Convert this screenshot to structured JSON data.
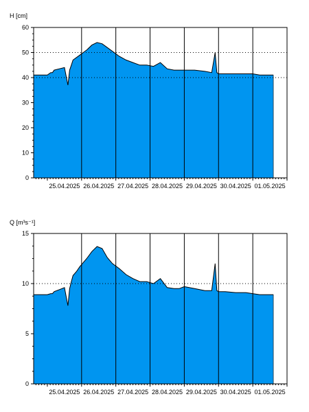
{
  "chart_data": [
    {
      "type": "area",
      "ylabel": "H [cm]",
      "ylim": [
        0,
        60
      ],
      "yticks": [
        0,
        10,
        20,
        30,
        40,
        50,
        60
      ],
      "ygrid_dotted": [
        40,
        50
      ],
      "xlim": [
        -0.4,
        7.0
      ],
      "x_day_labels": [
        "25.04.2025",
        "26.04.2025",
        "27.04.2025",
        "28.04.2025",
        "29.04.2025",
        "30.04.2025",
        "01.05.2025"
      ],
      "x_day_lines": [
        1,
        2,
        3,
        4,
        5,
        6
      ],
      "grid": "vertical day lines",
      "fill_color": "#0095f0",
      "line_color": "#000000",
      "series": [
        {
          "x": [
            -0.4,
            0.0,
            0.1,
            0.15,
            0.2,
            0.35,
            0.5,
            0.6,
            0.65,
            0.7,
            0.75,
            0.85,
            0.95,
            1.0,
            1.05,
            1.15,
            1.3,
            1.45,
            1.6,
            1.75,
            1.9,
            2.1,
            2.3,
            2.5,
            2.7,
            2.9,
            3.1,
            3.3,
            3.5,
            3.7,
            3.85,
            4.0,
            4.3,
            4.6,
            4.8,
            4.9,
            4.95,
            5.0,
            5.1,
            5.2,
            5.5,
            5.8,
            6.0,
            6.2,
            6.4,
            6.6
          ],
          "y": [
            41,
            41,
            42,
            42,
            43,
            43.5,
            44,
            37,
            43,
            45,
            47,
            48,
            49,
            49.5,
            50,
            51,
            53,
            54,
            53.5,
            52,
            50.5,
            48.5,
            47,
            46,
            45,
            45,
            44.5,
            46,
            43.5,
            43,
            43,
            43,
            43,
            42.5,
            42,
            50,
            42,
            41.5,
            41.5,
            41.5,
            41.5,
            41.5,
            41.5,
            41,
            41,
            41
          ]
        }
      ]
    },
    {
      "type": "area",
      "ylabel": "Q [m³s⁻¹]",
      "ylim": [
        0,
        15
      ],
      "yticks": [
        0,
        5,
        10,
        15
      ],
      "ygrid_dotted": [
        10
      ],
      "xlim": [
        -0.4,
        7.0
      ],
      "x_day_labels": [
        "25.04.2025",
        "26.04.2025",
        "27.04.2025",
        "28.04.2025",
        "29.04.2025",
        "30.04.2025",
        "01.05.2025"
      ],
      "x_day_lines": [
        1,
        2,
        3,
        4,
        5,
        6
      ],
      "grid": "vertical day lines",
      "fill_color": "#0095f0",
      "line_color": "#000000",
      "series": [
        {
          "x": [
            -0.4,
            0.0,
            0.1,
            0.15,
            0.2,
            0.35,
            0.5,
            0.6,
            0.65,
            0.7,
            0.75,
            0.85,
            0.95,
            1.0,
            1.05,
            1.15,
            1.3,
            1.45,
            1.6,
            1.75,
            1.9,
            2.1,
            2.3,
            2.5,
            2.7,
            2.9,
            3.1,
            3.3,
            3.5,
            3.7,
            3.85,
            4.0,
            4.3,
            4.6,
            4.8,
            4.9,
            4.95,
            5.0,
            5.1,
            5.2,
            5.5,
            5.8,
            6.0,
            6.2,
            6.4,
            6.6
          ],
          "y": [
            8.9,
            8.9,
            9.0,
            9.0,
            9.2,
            9.4,
            9.6,
            7.8,
            9.5,
            10.2,
            10.8,
            11.2,
            11.7,
            11.9,
            12.1,
            12.5,
            13.2,
            13.7,
            13.5,
            12.6,
            12.0,
            11.5,
            10.9,
            10.5,
            10.2,
            10.2,
            10.0,
            10.5,
            9.6,
            9.5,
            9.5,
            9.7,
            9.5,
            9.3,
            9.3,
            12.0,
            9.3,
            9.2,
            9.2,
            9.2,
            9.1,
            9.1,
            9.0,
            8.9,
            8.9,
            8.9
          ]
        }
      ]
    }
  ]
}
